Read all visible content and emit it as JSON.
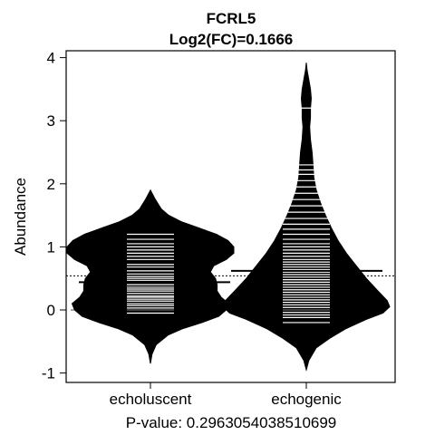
{
  "chart_data": {
    "type": "beanplot",
    "title": "FCRL5",
    "subtitle": "Log2(FC)=0.1666",
    "xlabel": "P-value: 0.2963054038510699",
    "ylabel": "Abundance",
    "ylim": [
      -1.15,
      4.12
    ],
    "yticks": [
      -1,
      0,
      1,
      2,
      3,
      4
    ],
    "ytick_labels": [
      "-1",
      "0",
      "1",
      "2",
      "3",
      "4"
    ],
    "categories": [
      "echoluscent",
      "echogenic"
    ],
    "overall_mean": 0.54,
    "colors": {
      "bean": "#000000",
      "points": "#ffffff",
      "background": "#ffffff"
    },
    "series": [
      {
        "name": "echoluscent",
        "group_mean": 0.44,
        "density": [
          [
            -0.85,
            0.0
          ],
          [
            -0.7,
            0.02
          ],
          [
            -0.55,
            0.07
          ],
          [
            -0.4,
            0.21
          ],
          [
            -0.3,
            0.38
          ],
          [
            -0.2,
            0.62
          ],
          [
            -0.1,
            0.82
          ],
          [
            0.0,
            0.91
          ],
          [
            0.1,
            0.94
          ],
          [
            0.2,
            0.85
          ],
          [
            0.3,
            0.8
          ],
          [
            0.4,
            0.8
          ],
          [
            0.5,
            0.78
          ],
          [
            0.6,
            0.72
          ],
          [
            0.7,
            0.76
          ],
          [
            0.8,
            0.91
          ],
          [
            0.9,
            1.0
          ],
          [
            1.0,
            1.0
          ],
          [
            1.1,
            0.93
          ],
          [
            1.2,
            0.79
          ],
          [
            1.3,
            0.58
          ],
          [
            1.4,
            0.37
          ],
          [
            1.5,
            0.22
          ],
          [
            1.6,
            0.13
          ],
          [
            1.75,
            0.06
          ],
          [
            1.9,
            0.0
          ]
        ],
        "points": [
          -0.05,
          0.0,
          0.03,
          0.07,
          0.1,
          0.14,
          0.17,
          0.2,
          0.22,
          0.26,
          0.3,
          0.33,
          0.36,
          0.4,
          0.44,
          0.47,
          0.5,
          0.53,
          0.57,
          0.62,
          0.68,
          0.72,
          0.8,
          0.85,
          0.9,
          0.95,
          1.0,
          1.05,
          1.12,
          1.2
        ]
      },
      {
        "name": "echogenic",
        "group_mean": 0.62,
        "density": [
          [
            -0.95,
            0.0
          ],
          [
            -0.8,
            0.03
          ],
          [
            -0.6,
            0.12
          ],
          [
            -0.45,
            0.28
          ],
          [
            -0.3,
            0.47
          ],
          [
            -0.15,
            0.72
          ],
          [
            -0.05,
            0.92
          ],
          [
            0.05,
            1.0
          ],
          [
            0.15,
            0.97
          ],
          [
            0.3,
            0.86
          ],
          [
            0.5,
            0.72
          ],
          [
            0.7,
            0.6
          ],
          [
            0.9,
            0.48
          ],
          [
            1.1,
            0.38
          ],
          [
            1.3,
            0.3
          ],
          [
            1.5,
            0.23
          ],
          [
            1.7,
            0.17
          ],
          [
            1.9,
            0.12
          ],
          [
            2.1,
            0.09
          ],
          [
            2.3,
            0.08
          ],
          [
            2.5,
            0.07
          ],
          [
            2.7,
            0.05
          ],
          [
            2.9,
            0.04
          ],
          [
            3.05,
            0.05
          ],
          [
            3.2,
            0.05
          ],
          [
            3.35,
            0.06
          ],
          [
            3.5,
            0.05
          ],
          [
            3.65,
            0.03
          ],
          [
            3.8,
            0.01
          ],
          [
            3.92,
            0.0
          ]
        ],
        "points": [
          -0.2,
          -0.12,
          -0.08,
          -0.04,
          0.0,
          0.04,
          0.08,
          0.12,
          0.16,
          0.2,
          0.24,
          0.28,
          0.32,
          0.36,
          0.4,
          0.44,
          0.48,
          0.52,
          0.56,
          0.6,
          0.64,
          0.68,
          0.72,
          0.76,
          0.8,
          0.85,
          0.9,
          0.95,
          1.0,
          1.05,
          1.12,
          1.2,
          1.28,
          1.36,
          1.45,
          1.55,
          1.65,
          1.75,
          1.85,
          1.95,
          2.05,
          2.15,
          2.22,
          2.3,
          3.2
        ]
      }
    ]
  }
}
